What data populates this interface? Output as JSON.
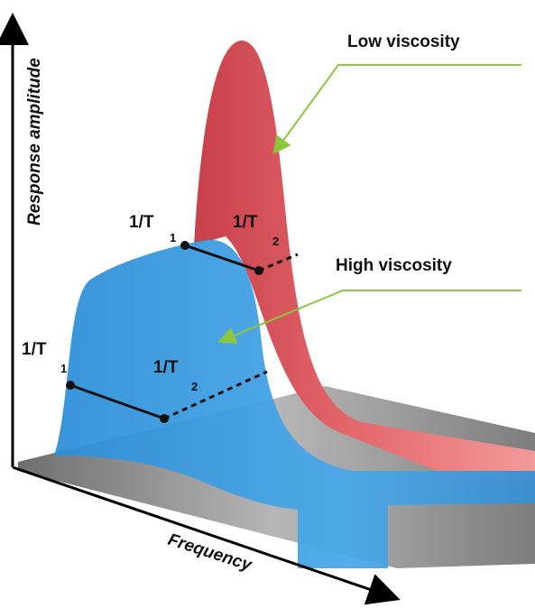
{
  "axes": {
    "y_label": "Response amplitude",
    "x_label": "Frequency"
  },
  "labels": {
    "low": "Low viscosity",
    "high": "High viscosity"
  },
  "markers": [
    {
      "text": "1/T",
      "sub": "1"
    },
    {
      "text": "1/T",
      "sub": "2"
    },
    {
      "text": "1/T",
      "sub": "1"
    },
    {
      "text": "1/T",
      "sub": "2"
    }
  ]
}
